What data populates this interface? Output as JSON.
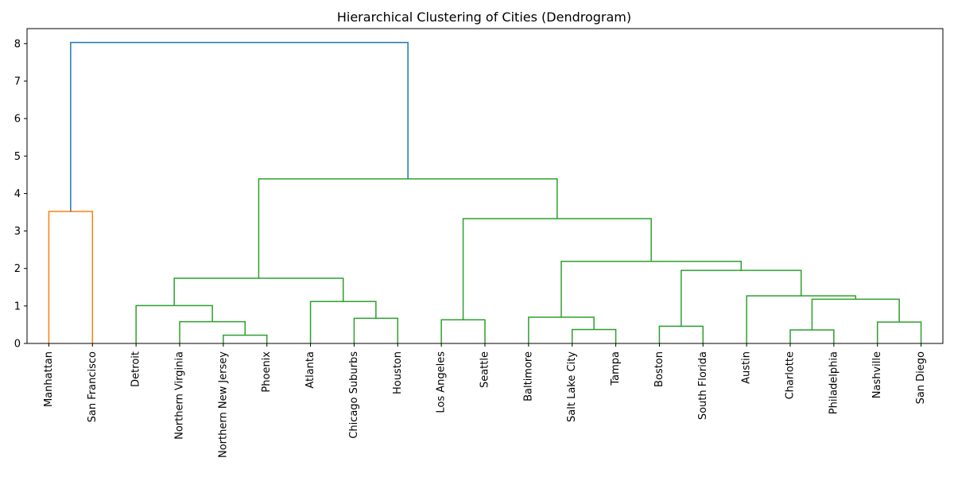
{
  "chart_data": {
    "type": "dendrogram",
    "title": "Hierarchical Clustering of Cities (Dendrogram)",
    "xlabel": "",
    "ylabel": "",
    "ylim": [
      0,
      8.4
    ],
    "yticks": [
      "0",
      "1",
      "2",
      "3",
      "4",
      "5",
      "6",
      "7",
      "8"
    ],
    "grid": false,
    "colors": {
      "orange": "#ff7f0e",
      "green": "#2ca02c",
      "blue": "#1f77b4",
      "axis": "#000000"
    },
    "leaves": [
      "Manhattan",
      "San Francisco",
      "Detroit",
      "Northern Virginia",
      "Northern New Jersey",
      "Phoenix",
      "Atlanta",
      "Chicago Suburbs",
      "Houston",
      "Los Angeles",
      "Seattle",
      "Baltimore",
      "Salt Lake City",
      "Tampa",
      "Boston",
      "South Florida",
      "Austin",
      "Charlotte",
      "Philadelphia",
      "Nashville",
      "San Diego"
    ],
    "merges": [
      {
        "left": "leaf:0",
        "right": "leaf:1",
        "height": 3.52,
        "color": "orange"
      },
      {
        "left": "leaf:4",
        "right": "leaf:5",
        "height": 0.22,
        "color": "green"
      },
      {
        "left": "leaf:3",
        "right": "node:1",
        "height": 0.58,
        "color": "green"
      },
      {
        "left": "leaf:2",
        "right": "node:2",
        "height": 1.01,
        "color": "green"
      },
      {
        "left": "leaf:7",
        "right": "leaf:8",
        "height": 0.67,
        "color": "green"
      },
      {
        "left": "leaf:6",
        "right": "node:4",
        "height": 1.12,
        "color": "green"
      },
      {
        "left": "node:3",
        "right": "node:5",
        "height": 1.74,
        "color": "green"
      },
      {
        "left": "leaf:9",
        "right": "leaf:10",
        "height": 0.63,
        "color": "green"
      },
      {
        "left": "leaf:12",
        "right": "leaf:13",
        "height": 0.37,
        "color": "green"
      },
      {
        "left": "leaf:11",
        "right": "node:8",
        "height": 0.7,
        "color": "green"
      },
      {
        "left": "leaf:14",
        "right": "leaf:15",
        "height": 0.46,
        "color": "green"
      },
      {
        "left": "leaf:17",
        "right": "leaf:18",
        "height": 0.36,
        "color": "green"
      },
      {
        "left": "leaf:19",
        "right": "leaf:20",
        "height": 0.57,
        "color": "green"
      },
      {
        "left": "node:11",
        "right": "node:12",
        "height": 1.18,
        "color": "green"
      },
      {
        "left": "leaf:16",
        "right": "node:13",
        "height": 1.27,
        "color": "green"
      },
      {
        "left": "node:10",
        "right": "node:14",
        "height": 1.95,
        "color": "green"
      },
      {
        "left": "node:9",
        "right": "node:15",
        "height": 2.19,
        "color": "green"
      },
      {
        "left": "node:7",
        "right": "node:16",
        "height": 3.33,
        "color": "green"
      },
      {
        "left": "node:6",
        "right": "node:17",
        "height": 4.39,
        "color": "green"
      },
      {
        "left": "node:0",
        "right": "node:18",
        "height": 8.03,
        "color": "blue"
      }
    ]
  }
}
